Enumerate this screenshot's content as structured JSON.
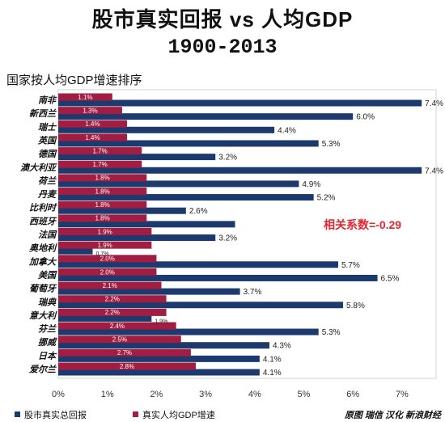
{
  "source": "原图 瑞信 汉化 新浪财经",
  "chart_data": {
    "type": "bar",
    "orientation": "horizontal",
    "title": "股市真实回报 vs 人均GDP",
    "title_period": "1900-2013",
    "subtitle": "国家按人均GDP增速排序",
    "annotation": "相关系数=-0.29",
    "annotation_color": "#e3262e",
    "categories": [
      "南非",
      "新西兰",
      "瑞士",
      "英国",
      "德国",
      "澳大利亚",
      "荷兰",
      "丹麦",
      "比利时",
      "西班牙",
      "法国",
      "奥地利",
      "加拿大",
      "美国",
      "葡萄牙",
      "瑞典",
      "意大利",
      "芬兰",
      "挪威",
      "日本",
      "爱尔兰"
    ],
    "series": [
      {
        "name": "股市真实总回报",
        "color": "#1d3a6e",
        "values": [
          7.4,
          6.0,
          4.4,
          5.3,
          3.2,
          7.4,
          4.9,
          5.2,
          2.6,
          3.6,
          3.2,
          0.7,
          5.7,
          6.5,
          3.7,
          5.8,
          1.9,
          5.3,
          4.3,
          4.1,
          4.1
        ],
        "labels": [
          "7.4%",
          "6.0%",
          "4.4%",
          "5.3%",
          "3.2%",
          "7.4%",
          "4.9%",
          "5.2%",
          "2.6%",
          "",
          "3.2%",
          "0.7%",
          "5.7%",
          "6.5%",
          "3.7%",
          "5.8%",
          "1.9%",
          "5.3%",
          "4.3%",
          "4.1%",
          "4.1%"
        ]
      },
      {
        "name": "真实人均GDP增速",
        "color": "#a11d41",
        "values": [
          1.1,
          1.3,
          1.4,
          1.4,
          1.7,
          1.7,
          1.8,
          1.8,
          1.8,
          1.8,
          1.9,
          1.9,
          2.0,
          2.0,
          2.1,
          2.2,
          2.2,
          2.4,
          2.5,
          2.7,
          2.8
        ],
        "labels": [
          "1.1%",
          "1.3%",
          "1.4%",
          "1.4%",
          "1.7%",
          "1.7%",
          "1.8%",
          "1.8%",
          "1.8%",
          "1.8%",
          "1.9%",
          "1.9%",
          "2.0%",
          "2.0%",
          "2.1%",
          "2.2%",
          "2.2%",
          "2.4%",
          "2.5%",
          "2.7%",
          "2.8%"
        ]
      }
    ],
    "xlim": [
      0,
      7.7
    ],
    "x_ticks": [
      0,
      1,
      2,
      3,
      4,
      5,
      6,
      7
    ],
    "x_tick_labels": [
      "0%",
      "1%",
      "2%",
      "3%",
      "4%",
      "5%",
      "6%",
      "7%"
    ],
    "grid": false,
    "legend": "bottom-left"
  }
}
